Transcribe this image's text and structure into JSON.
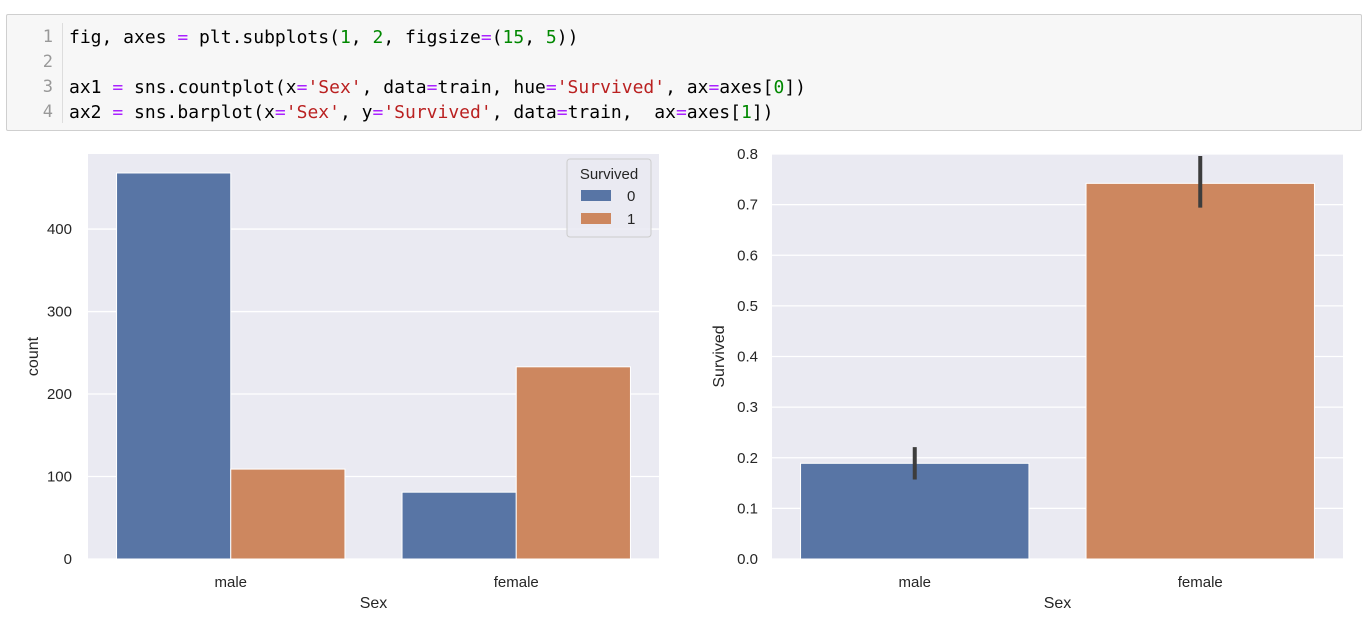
{
  "code_cell": {
    "lines": [
      {
        "number": "1",
        "tokens": [
          {
            "t": "fig, axes ",
            "c": ""
          },
          {
            "t": "=",
            "c": "op"
          },
          {
            "t": " plt.subplots(",
            "c": ""
          },
          {
            "t": "1",
            "c": "num"
          },
          {
            "t": ", ",
            "c": ""
          },
          {
            "t": "2",
            "c": "num"
          },
          {
            "t": ", figsize",
            "c": ""
          },
          {
            "t": "=",
            "c": "op"
          },
          {
            "t": "(",
            "c": ""
          },
          {
            "t": "15",
            "c": "num"
          },
          {
            "t": ", ",
            "c": ""
          },
          {
            "t": "5",
            "c": "num"
          },
          {
            "t": "))",
            "c": ""
          }
        ]
      },
      {
        "number": "2",
        "tokens": []
      },
      {
        "number": "3",
        "tokens": [
          {
            "t": "ax1 ",
            "c": ""
          },
          {
            "t": "=",
            "c": "op"
          },
          {
            "t": " sns.countplot(x",
            "c": ""
          },
          {
            "t": "=",
            "c": "op"
          },
          {
            "t": "'Sex'",
            "c": "str"
          },
          {
            "t": ", data",
            "c": ""
          },
          {
            "t": "=",
            "c": "op"
          },
          {
            "t": "train, hue",
            "c": ""
          },
          {
            "t": "=",
            "c": "op"
          },
          {
            "t": "'Survived'",
            "c": "str"
          },
          {
            "t": ", ax",
            "c": ""
          },
          {
            "t": "=",
            "c": "op"
          },
          {
            "t": "axes[",
            "c": ""
          },
          {
            "t": "0",
            "c": "num"
          },
          {
            "t": "])",
            "c": ""
          }
        ]
      },
      {
        "number": "4",
        "tokens": [
          {
            "t": "ax2 ",
            "c": ""
          },
          {
            "t": "=",
            "c": "op"
          },
          {
            "t": " sns.barplot(x",
            "c": ""
          },
          {
            "t": "=",
            "c": "op"
          },
          {
            "t": "'Sex'",
            "c": "str"
          },
          {
            "t": ", y",
            "c": ""
          },
          {
            "t": "=",
            "c": "op"
          },
          {
            "t": "'Survived'",
            "c": "str"
          },
          {
            "t": ", data",
            "c": ""
          },
          {
            "t": "=",
            "c": "op"
          },
          {
            "t": "train,  ax",
            "c": ""
          },
          {
            "t": "=",
            "c": "op"
          },
          {
            "t": "axes[",
            "c": ""
          },
          {
            "t": "1",
            "c": "num"
          },
          {
            "t": "])",
            "c": ""
          }
        ]
      }
    ]
  },
  "colors": {
    "axes_bg": "#eaeaf2",
    "grid": "#ffffff",
    "blue": "#5875a5",
    "orange": "#cd875f",
    "error_bar": "#3d3d3d",
    "text": "#262626"
  },
  "chart_data": [
    {
      "type": "bar",
      "categories": [
        "male",
        "female"
      ],
      "series": [
        {
          "name": "0",
          "values": [
            468,
            81
          ]
        },
        {
          "name": "1",
          "values": [
            109,
            233
          ]
        }
      ],
      "xlabel": "Sex",
      "ylabel": "count",
      "ylim": [
        0,
        491
      ],
      "yticks": [
        0,
        100,
        200,
        300,
        400
      ],
      "grid": true,
      "legend": {
        "title": "Survived",
        "entries": [
          "0",
          "1"
        ],
        "placement": "top-right"
      }
    },
    {
      "type": "bar",
      "categories": [
        "male",
        "female"
      ],
      "values": [
        0.189,
        0.742
      ],
      "error_bars": [
        [
          0.157,
          0.221
        ],
        [
          0.694,
          0.796
        ]
      ],
      "xlabel": "Sex",
      "ylabel": "Survived",
      "ylim": [
        0,
        0.8
      ],
      "yticks": [
        "0.0",
        "0.1",
        "0.2",
        "0.3",
        "0.4",
        "0.5",
        "0.6",
        "0.7",
        "0.8"
      ],
      "grid": true
    }
  ]
}
